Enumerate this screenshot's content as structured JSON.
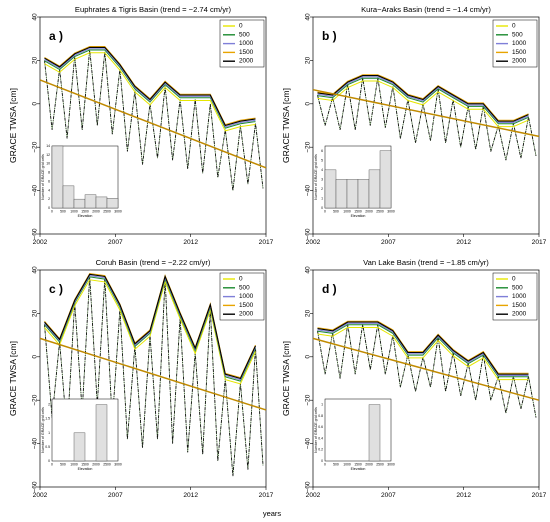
{
  "figure": {
    "x_axis_label": "years",
    "colors": {
      "elev_0": "#e6e600",
      "elev_500": "#1b8a2f",
      "elev_1000": "#7f7fd8",
      "elev_1500": "#e8a400",
      "elev_2000": "#000000",
      "trend": "#c08a00",
      "hist_fill": "#e0e0e0"
    }
  },
  "chart_data": [
    {
      "type": "line",
      "letter": "a )",
      "title": "Euphrates & Tigris Basin (trend = −2.74 cm/yr)",
      "ylabel": "GRACE TWSA [cm]",
      "xlim": [
        2002,
        2017
      ],
      "ylim": [
        -60,
        40
      ],
      "xticks": [
        2002,
        2007,
        2012,
        2017
      ],
      "yticks": [
        -60,
        -40,
        -20,
        0,
        20,
        40
      ],
      "legend": {
        "position": "top-right",
        "entries": [
          "0",
          "500",
          "1000",
          "1500",
          "2000"
        ]
      },
      "series": [
        {
          "name": "2000",
          "role": "peaks",
          "x": [
            2002.3,
            2003.3,
            2004.3,
            2005.3,
            2006.3,
            2007.3,
            2008.3,
            2009.3,
            2010.3,
            2011.3,
            2012.3,
            2013.3,
            2014.3,
            2015.3,
            2016.3
          ],
          "y": [
            21,
            17,
            23,
            26,
            26,
            18,
            8,
            2,
            10,
            4,
            4,
            4,
            -10,
            -8,
            -7
          ]
        },
        {
          "name": "monthly",
          "role": "seasonal",
          "x": [
            2002.3,
            2002.8,
            2003.3,
            2003.8,
            2004.3,
            2004.8,
            2005.3,
            2005.8,
            2006.3,
            2006.8,
            2007.3,
            2007.8,
            2008.3,
            2008.8,
            2009.3,
            2009.8,
            2010.3,
            2010.8,
            2011.3,
            2011.8,
            2012.3,
            2012.8,
            2013.3,
            2013.8,
            2014.3,
            2014.8,
            2015.3,
            2015.8,
            2016.3,
            2016.8
          ],
          "y": [
            20,
            -12,
            16,
            -16,
            22,
            -12,
            25,
            -10,
            24,
            -14,
            16,
            -22,
            6,
            -28,
            0,
            -25,
            8,
            -26,
            2,
            -30,
            2,
            -32,
            0,
            -34,
            -12,
            -40,
            -10,
            -37,
            -9,
            -39
          ]
        },
        {
          "name": "trend",
          "role": "trend",
          "x": [
            2002,
            2017
          ],
          "y": [
            11,
            -29.5
          ]
        }
      ],
      "inset": {
        "type": "bar",
        "xlabel": "Elevation",
        "ylabel": "Number of GRACE grid cells",
        "xticks": [
          0,
          500,
          1000,
          1500,
          2000,
          2500,
          3000
        ],
        "yticks": [
          0,
          2,
          4,
          6,
          8,
          10,
          12,
          14
        ],
        "bins": [
          0,
          500,
          1000,
          1500,
          2000,
          2500,
          3000
        ],
        "counts": [
          14,
          5,
          2,
          3,
          2.5,
          2.2
        ],
        "ymax": 14
      }
    },
    {
      "type": "line",
      "letter": "b )",
      "title": "Kura−Araks Basin (trend = −1.4 cm/yr)",
      "ylabel": "GRACE TWSA [cm]",
      "xlim": [
        2002,
        2017
      ],
      "ylim": [
        -60,
        40
      ],
      "xticks": [
        2002,
        2007,
        2012,
        2017
      ],
      "yticks": [
        -60,
        -40,
        -20,
        0,
        20,
        40
      ],
      "legend": {
        "position": "top-right",
        "entries": [
          "0",
          "500",
          "1000",
          "1500",
          "2000"
        ]
      },
      "series": [
        {
          "name": "2000",
          "role": "peaks",
          "x": [
            2002.3,
            2003.3,
            2004.3,
            2005.3,
            2006.3,
            2007.3,
            2008.3,
            2009.3,
            2010.3,
            2011.3,
            2012.3,
            2013.3,
            2014.3,
            2015.3,
            2016.3
          ],
          "y": [
            5,
            4,
            10,
            13,
            13,
            10,
            4,
            2,
            8,
            4,
            0,
            0,
            -8,
            -8,
            -5
          ]
        },
        {
          "name": "monthly",
          "role": "seasonal",
          "x": [
            2002.3,
            2002.8,
            2003.3,
            2003.8,
            2004.3,
            2004.8,
            2005.3,
            2005.8,
            2006.3,
            2006.8,
            2007.3,
            2007.8,
            2008.3,
            2008.8,
            2009.3,
            2009.8,
            2010.3,
            2010.8,
            2011.3,
            2011.8,
            2012.3,
            2012.8,
            2013.3,
            2013.8,
            2014.3,
            2014.8,
            2015.3,
            2015.8,
            2016.3,
            2016.8
          ],
          "y": [
            4,
            -10,
            3,
            -12,
            9,
            -12,
            12,
            -10,
            12,
            -11,
            8,
            -16,
            2,
            -18,
            0,
            -17,
            7,
            -18,
            2,
            -20,
            -1,
            -21,
            -1,
            -22,
            -10,
            -26,
            -9,
            -25,
            -6,
            -24
          ]
        },
        {
          "name": "trend",
          "role": "trend",
          "x": [
            2002,
            2017
          ],
          "y": [
            6.5,
            -15
          ]
        }
      ],
      "inset": {
        "type": "bar",
        "xlabel": "Elevation",
        "ylabel": "Number of GRACE grid cells",
        "xticks": [
          0,
          500,
          1000,
          1500,
          2000,
          2500,
          3000
        ],
        "yticks": [
          0,
          1,
          2,
          3,
          4,
          5,
          6
        ],
        "bins": [
          0,
          500,
          1000,
          1500,
          2000,
          2500,
          3000
        ],
        "counts": [
          4,
          3,
          3,
          3,
          4,
          6
        ],
        "ymax": 6.5
      }
    },
    {
      "type": "line",
      "letter": "c )",
      "title": "Coruh Basin (trend = −2.22 cm/yr)",
      "ylabel": "GRACE TWSA [cm]",
      "xlim": [
        2002,
        2017
      ],
      "ylim": [
        -60,
        40
      ],
      "xticks": [
        2002,
        2007,
        2012,
        2017
      ],
      "yticks": [
        -60,
        -40,
        -20,
        0,
        20,
        40
      ],
      "legend": {
        "position": "top-right",
        "entries": [
          "0",
          "500",
          "1000",
          "1500",
          "2000"
        ]
      },
      "series": [
        {
          "name": "2000",
          "role": "peaks",
          "x": [
            2002.3,
            2003.3,
            2004.3,
            2005.3,
            2006.3,
            2007.3,
            2008.3,
            2009.3,
            2010.3,
            2011.3,
            2012.3,
            2013.3,
            2014.3,
            2015.3,
            2016.3
          ],
          "y": [
            16,
            8,
            26,
            38,
            37,
            24,
            6,
            12,
            37,
            20,
            4,
            24,
            -8,
            -10,
            5
          ]
        },
        {
          "name": "monthly",
          "role": "seasonal",
          "x": [
            2002.3,
            2002.8,
            2003.3,
            2003.8,
            2004.3,
            2004.8,
            2005.3,
            2005.8,
            2006.3,
            2006.8,
            2007.3,
            2007.8,
            2008.3,
            2008.8,
            2009.3,
            2009.8,
            2010.3,
            2010.8,
            2011.3,
            2011.8,
            2012.3,
            2012.8,
            2013.3,
            2013.8,
            2014.3,
            2014.8,
            2015.3,
            2015.8,
            2016.3,
            2016.8
          ],
          "y": [
            15,
            -28,
            7,
            -35,
            25,
            -25,
            37,
            -22,
            36,
            -30,
            22,
            -38,
            5,
            -42,
            10,
            -38,
            36,
            -40,
            18,
            -44,
            2,
            -45,
            22,
            -48,
            -10,
            -55,
            -12,
            -52,
            4,
            -50
          ]
        },
        {
          "name": "trend",
          "role": "trend",
          "x": [
            2002,
            2017
          ],
          "y": [
            8.5,
            -24.5
          ]
        }
      ],
      "inset": {
        "type": "bar",
        "xlabel": "Elevation",
        "ylabel": "Number of GRACE grid cells",
        "xticks": [
          0,
          500,
          1000,
          1500,
          2000,
          2500,
          3000
        ],
        "yticks": [
          0,
          0.5,
          1,
          1.5,
          2
        ],
        "bins": [
          0,
          500,
          1000,
          1500,
          2000,
          2500,
          3000
        ],
        "counts": [
          0,
          0,
          1,
          0,
          2,
          0
        ],
        "ymax": 2.2
      }
    },
    {
      "type": "line",
      "letter": "d )",
      "title": "Van Lake Basin (trend = −1.85 cm/yr)",
      "ylabel": "GRACE TWSA [cm]",
      "xlim": [
        2002,
        2017
      ],
      "ylim": [
        -60,
        40
      ],
      "xticks": [
        2002,
        2007,
        2012,
        2017
      ],
      "yticks": [
        -60,
        -40,
        -20,
        0,
        20,
        40
      ],
      "legend": {
        "position": "top-right",
        "entries": [
          "0",
          "500",
          "1000",
          "1500",
          "2000"
        ]
      },
      "series": [
        {
          "name": "2000",
          "role": "peaks",
          "x": [
            2002.3,
            2003.3,
            2004.3,
            2005.3,
            2006.3,
            2007.3,
            2008.3,
            2009.3,
            2010.3,
            2011.3,
            2012.3,
            2013.3,
            2014.3,
            2015.3,
            2016.3
          ],
          "y": [
            13,
            12,
            16,
            16,
            16,
            12,
            2,
            2,
            10,
            3,
            -2,
            2,
            -8,
            -8,
            -8
          ]
        },
        {
          "name": "monthly",
          "role": "seasonal",
          "x": [
            2002.3,
            2002.8,
            2003.3,
            2003.8,
            2004.3,
            2004.8,
            2005.3,
            2005.8,
            2006.3,
            2006.8,
            2007.3,
            2007.8,
            2008.3,
            2008.8,
            2009.3,
            2009.8,
            2010.3,
            2010.8,
            2011.3,
            2011.8,
            2012.3,
            2012.8,
            2013.3,
            2013.8,
            2014.3,
            2014.8,
            2015.3,
            2015.8,
            2016.3,
            2016.8
          ],
          "y": [
            12,
            -8,
            11,
            -10,
            15,
            -8,
            15,
            -6,
            15,
            -8,
            10,
            -14,
            1,
            -16,
            0,
            -14,
            9,
            -16,
            2,
            -18,
            -3,
            -20,
            1,
            -20,
            -9,
            -26,
            -9,
            -24,
            -9,
            -28
          ]
        },
        {
          "name": "trend",
          "role": "trend",
          "x": [
            2002,
            2017
          ],
          "y": [
            8.5,
            -20
          ]
        }
      ],
      "inset": {
        "type": "bar",
        "xlabel": "Elevation",
        "ylabel": "Number of GRACE grid cells",
        "xticks": [
          0,
          500,
          1000,
          1500,
          2000,
          2500,
          3000
        ],
        "yticks": [
          0,
          0.2,
          0.4,
          0.6,
          0.8,
          1
        ],
        "bins": [
          0,
          500,
          1000,
          1500,
          2000,
          2500,
          3000
        ],
        "counts": [
          0,
          0,
          0,
          0,
          1,
          0
        ],
        "ymax": 1.1
      }
    }
  ]
}
